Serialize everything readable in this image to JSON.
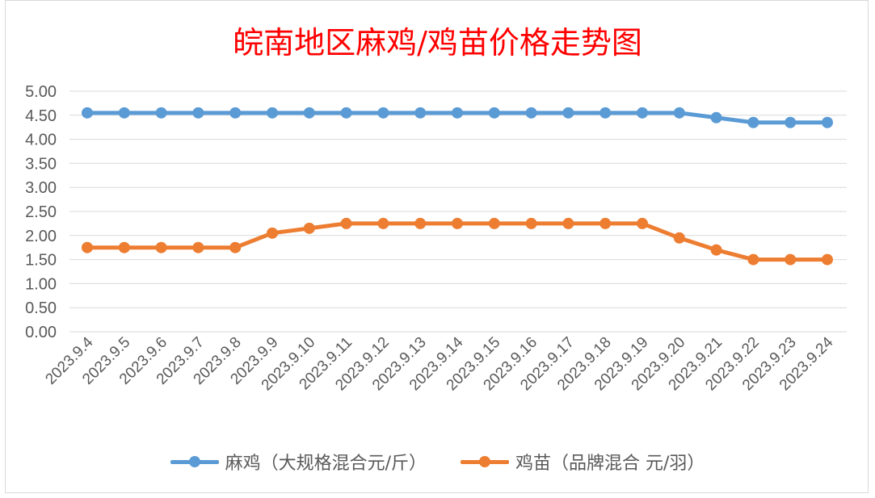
{
  "chart_data": {
    "type": "line",
    "title": "皖南地区麻鸡/鸡苗价格走势图",
    "categories": [
      "2023.9.4",
      "2023.9.5",
      "2023.9.6",
      "2023.9.7",
      "2023.9.8",
      "2023.9.9",
      "2023.9.10",
      "2023.9.11",
      "2023.9.12",
      "2023.9.13",
      "2023.9.14",
      "2023.9.15",
      "2023.9.16",
      "2023.9.17",
      "2023.9.18",
      "2023.9.19",
      "2023.9.20",
      "2023.9.21",
      "2023.9.22",
      "2023.9.23",
      "2023.9.24"
    ],
    "series": [
      {
        "name": "麻鸡（大规格混合元/斤）",
        "color": "#5b9bd5",
        "values": [
          4.55,
          4.55,
          4.55,
          4.55,
          4.55,
          4.55,
          4.55,
          4.55,
          4.55,
          4.55,
          4.55,
          4.55,
          4.55,
          4.55,
          4.55,
          4.55,
          4.55,
          4.45,
          4.35,
          4.35,
          4.35
        ]
      },
      {
        "name": "鸡苗（品牌混合 元/羽）",
        "color": "#ed7d31",
        "values": [
          1.75,
          1.75,
          1.75,
          1.75,
          1.75,
          2.05,
          2.15,
          2.25,
          2.25,
          2.25,
          2.25,
          2.25,
          2.25,
          2.25,
          2.25,
          2.25,
          1.95,
          1.7,
          1.5,
          1.5,
          1.5
        ]
      }
    ],
    "yticks": [
      "0.00",
      "0.50",
      "1.00",
      "1.50",
      "2.00",
      "2.50",
      "3.00",
      "3.50",
      "4.00",
      "4.50",
      "5.00"
    ],
    "ylim": [
      0,
      5
    ],
    "grid": true,
    "legend": "bottom"
  },
  "colors": {
    "title": "#ff0000",
    "grid": "#d9d9d9",
    "axis_text": "#595959"
  }
}
